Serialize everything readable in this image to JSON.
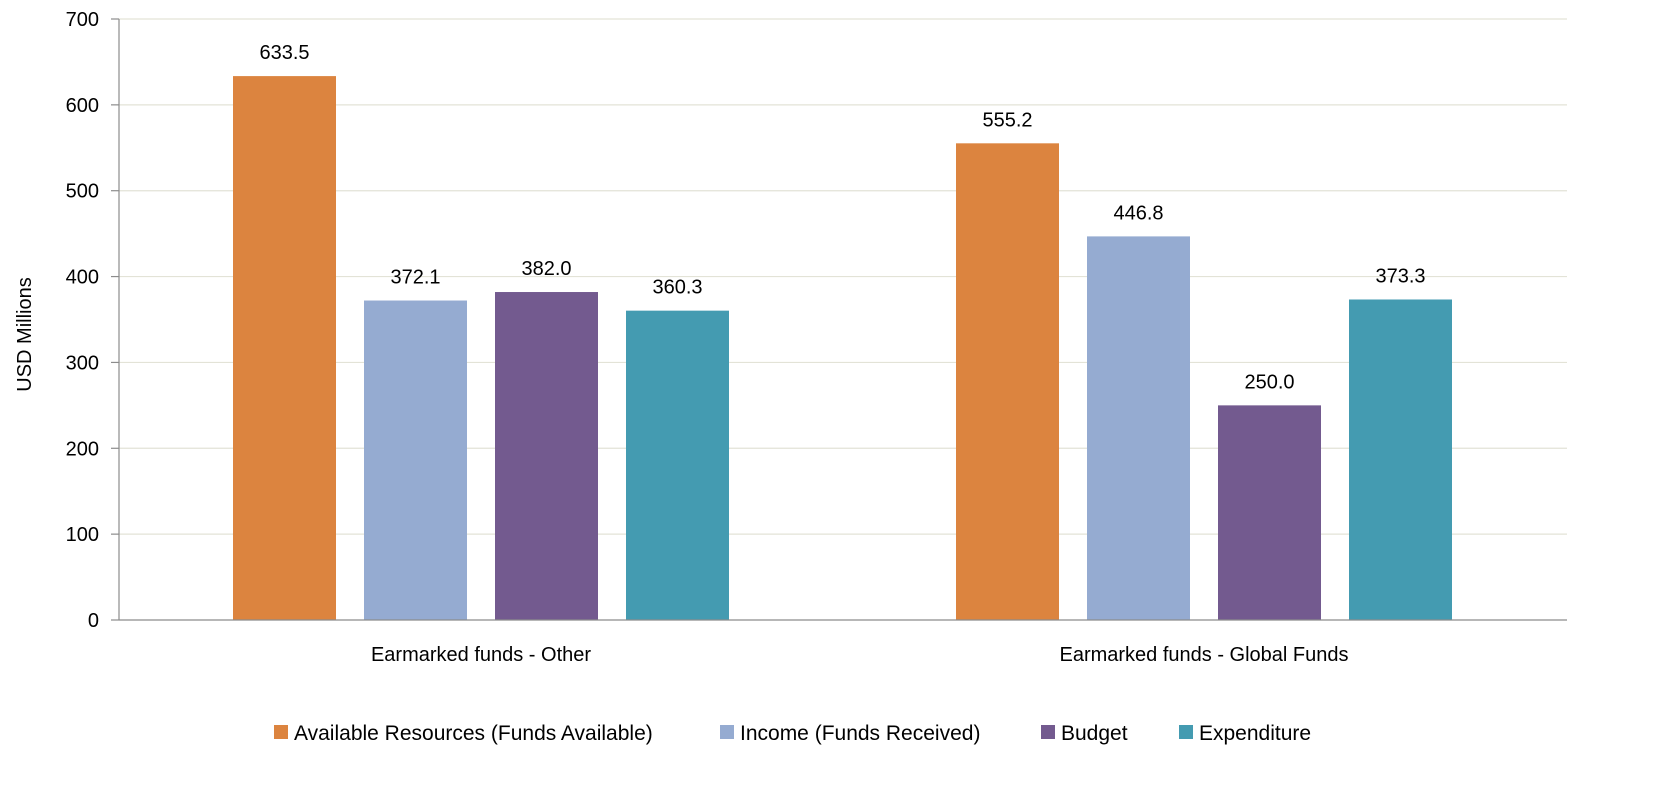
{
  "chart_data": {
    "type": "bar",
    "categories": [
      "Earmarked funds - Other",
      "Earmarked funds - Global Funds"
    ],
    "series": [
      {
        "name": "Available Resources (Funds Available)",
        "color": "#dc843f",
        "values": [
          633.5,
          555.2
        ],
        "labels": [
          "633.5",
          "555.2"
        ]
      },
      {
        "name": "Income (Funds Received)",
        "color": "#95abd1",
        "values": [
          372.1,
          446.8
        ],
        "labels": [
          "372.1",
          "446.8"
        ]
      },
      {
        "name": "Budget",
        "color": "#735a8f",
        "values": [
          382.0,
          250.0
        ],
        "labels": [
          "382.0",
          "250.0"
        ]
      },
      {
        "name": "Expenditure",
        "color": "#449bb1",
        "values": [
          360.3,
          373.3
        ],
        "labels": [
          "360.3",
          "373.3"
        ]
      }
    ],
    "ylabel": "USD Millions",
    "ylim": [
      0,
      700
    ],
    "yticks": [
      "0",
      "100",
      "200",
      "300",
      "400",
      "500",
      "600",
      "700"
    ],
    "grid": true,
    "legend_position": "bottom"
  }
}
